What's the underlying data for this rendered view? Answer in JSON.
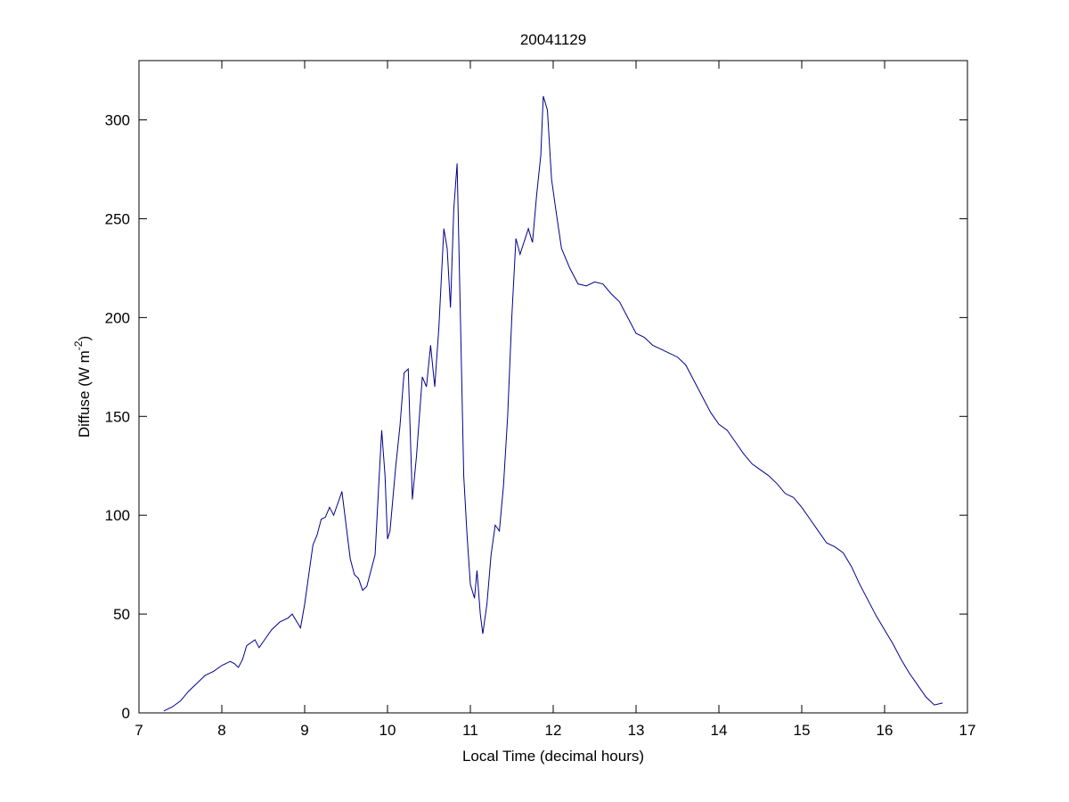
{
  "chart_data": {
    "type": "line",
    "title": "20041129",
    "xlabel": "Local Time (decimal hours)",
    "ylabel": [
      "Diffuse (W m",
      "-2",
      ")"
    ],
    "color": "#00008b",
    "x": [
      7.3,
      7.4,
      7.5,
      7.6,
      7.7,
      7.8,
      7.9,
      8.0,
      8.1,
      8.15,
      8.2,
      8.25,
      8.3,
      8.4,
      8.45,
      8.5,
      8.6,
      8.7,
      8.8,
      8.85,
      8.95,
      9.0,
      9.05,
      9.1,
      9.15,
      9.2,
      9.25,
      9.3,
      9.35,
      9.4,
      9.45,
      9.5,
      9.55,
      9.6,
      9.65,
      9.7,
      9.75,
      9.8,
      9.85,
      9.9,
      9.93,
      9.97,
      10.0,
      10.03,
      10.1,
      10.15,
      10.2,
      10.25,
      10.3,
      10.35,
      10.42,
      10.47,
      10.52,
      10.57,
      10.62,
      10.68,
      10.72,
      10.76,
      10.8,
      10.84,
      10.88,
      10.92,
      10.96,
      11.0,
      11.05,
      11.08,
      11.12,
      11.15,
      11.2,
      11.25,
      11.3,
      11.35,
      11.4,
      11.45,
      11.5,
      11.55,
      11.6,
      11.7,
      11.75,
      11.8,
      11.85,
      11.88,
      11.93,
      11.98,
      12.03,
      12.1,
      12.2,
      12.3,
      12.4,
      12.5,
      12.6,
      12.7,
      12.8,
      12.9,
      13.0,
      13.1,
      13.2,
      13.3,
      13.4,
      13.5,
      13.6,
      13.7,
      13.8,
      13.9,
      14.0,
      14.1,
      14.2,
      14.3,
      14.4,
      14.5,
      14.6,
      14.7,
      14.8,
      14.9,
      15.0,
      15.1,
      15.2,
      15.3,
      15.4,
      15.5,
      15.6,
      15.7,
      15.8,
      15.9,
      16.0,
      16.1,
      16.2,
      16.3,
      16.4,
      16.5,
      16.6,
      16.7
    ],
    "values": [
      1,
      3,
      6,
      11,
      15,
      19,
      21,
      24,
      26,
      25,
      23,
      27,
      34,
      37,
      33,
      36,
      42,
      46,
      48,
      50,
      43,
      55,
      70,
      85,
      90,
      98,
      99,
      104,
      100,
      106,
      112,
      95,
      78,
      70,
      68,
      62,
      64,
      72,
      80,
      120,
      143,
      120,
      88,
      92,
      125,
      145,
      172,
      174,
      108,
      130,
      170,
      165,
      186,
      165,
      195,
      245,
      235,
      205,
      255,
      278,
      200,
      120,
      90,
      65,
      58,
      72,
      50,
      40,
      55,
      80,
      95,
      92,
      115,
      150,
      200,
      240,
      232,
      245,
      238,
      262,
      282,
      312,
      305,
      270,
      255,
      235,
      225,
      217,
      216,
      218,
      217,
      212,
      208,
      200,
      192,
      190,
      186,
      184,
      182,
      180,
      176,
      168,
      160,
      152,
      146,
      143,
      137,
      131,
      126,
      123,
      120,
      116,
      111,
      109,
      104,
      98,
      92,
      86,
      84,
      81,
      74,
      65,
      57,
      49,
      42,
      35,
      27,
      20,
      14,
      8,
      4,
      5
    ],
    "xlim": [
      7,
      17
    ],
    "xticks": [
      7,
      8,
      9,
      10,
      11,
      12,
      13,
      14,
      15,
      16,
      17
    ],
    "ylim": [
      0,
      330
    ],
    "yticks": [
      0,
      50,
      100,
      150,
      200,
      250,
      300
    ],
    "grid": false
  }
}
